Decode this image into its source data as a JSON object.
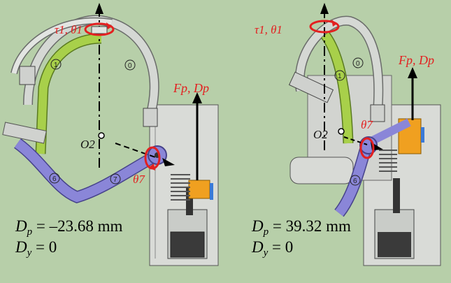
{
  "panels": [
    {
      "id": "left",
      "labels": {
        "torque": "τ1, θ1",
        "force": "Fp, Dp",
        "origin": "O2",
        "joint": "θ7",
        "link0": "0",
        "link1": "1",
        "link6": "6",
        "link7": "7"
      },
      "readouts": {
        "dp_symbol": "D",
        "dp_sub": "p",
        "dp_eq": "=",
        "dp_value": "–23.68 mm",
        "dy_symbol": "D",
        "dy_sub": "y",
        "dy_eq": "=",
        "dy_value": "0"
      }
    },
    {
      "id": "right",
      "labels": {
        "torque": "τ1, θ1",
        "force": "Fp, Dp",
        "origin": "O2",
        "joint": "θ7",
        "link0": "0",
        "link1": "1",
        "link6": "6"
      },
      "readouts": {
        "dp_symbol": "D",
        "dp_sub": "p",
        "dp_eq": "=",
        "dp_value": "39.32 mm",
        "dy_symbol": "D",
        "dy_sub": "y",
        "dy_eq": "=",
        "dy_value": "0"
      }
    }
  ],
  "colors": {
    "background": "#b7cfa9",
    "link0_metal": "#d5d8d4",
    "link1_green": "#a8d04a",
    "link7_purple": "#8a86d8",
    "bracket_orange": "#f0a020",
    "accent_red": "#e32020",
    "spring_blue": "#3a7ad8"
  }
}
